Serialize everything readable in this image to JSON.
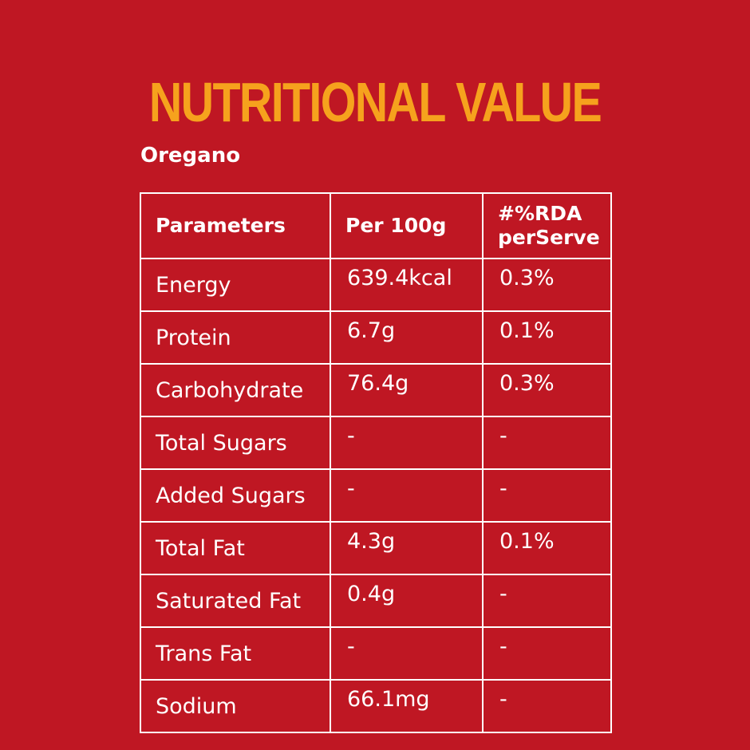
{
  "header": {
    "title": "NUTRITIONAL VALUE",
    "subtitle": "Oregano"
  },
  "table": {
    "columns": [
      "Parameters",
      "Per 100g",
      "#%RDA perServe"
    ],
    "rows": [
      [
        "Energy",
        "639.4kcal",
        "0.3%"
      ],
      [
        "Protein",
        "6.7g",
        "0.1%"
      ],
      [
        "Carbohydrate",
        "76.4g",
        "0.3%"
      ],
      [
        "Total Sugars",
        "-",
        "-"
      ],
      [
        "Added Sugars",
        "-",
        "-"
      ],
      [
        "Total Fat",
        "4.3g",
        "0.1%"
      ],
      [
        "Saturated Fat",
        "0.4g",
        "-"
      ],
      [
        "Trans Fat",
        "-",
        "-"
      ],
      [
        "Sodium",
        "66.1mg",
        "-"
      ]
    ]
  }
}
